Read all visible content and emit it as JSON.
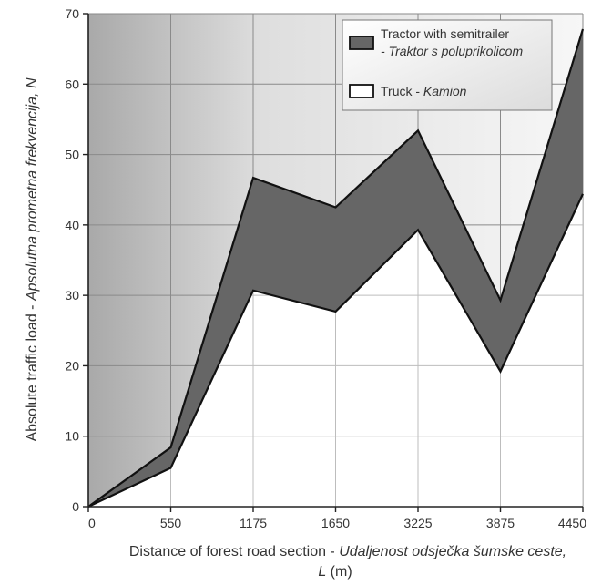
{
  "chart_data": {
    "type": "area",
    "categories": [
      "0",
      "550",
      "1175",
      "1650",
      "3225",
      "3875",
      "4450"
    ],
    "series": [
      {
        "name": "Truck - Kamion",
        "name_main": "Truck - ",
        "name_italic": "Kamion",
        "color": "#ffffff",
        "values": [
          0,
          5.5,
          30.7,
          27.7,
          39.3,
          19.2,
          44.4
        ]
      },
      {
        "name": "Tractor with semitrailer - Traktor s poluprikolicom",
        "name_line1": "Tractor with semitrailer",
        "name_line2_italic": "- Traktor s poluprikolicom",
        "color": "#666666",
        "values": [
          0,
          8.4,
          46.7,
          42.5,
          53.4,
          29.3,
          67.8
        ]
      }
    ],
    "ylim": [
      0,
      70
    ],
    "yticks": [
      0,
      10,
      20,
      30,
      40,
      50,
      60,
      70
    ],
    "xlabel_main": "Distance of forest road section - ",
    "xlabel_italic": "Udaljenost odsječka šumske ceste,",
    "xlabel_line2_italic": "L",
    "xlabel_line2_unit": " (m)",
    "ylabel_main": "Absolute traffic load - ",
    "ylabel_italic": "Apsolutna prometna frekvencija, N",
    "grid": true,
    "legend_position": "top-right"
  }
}
